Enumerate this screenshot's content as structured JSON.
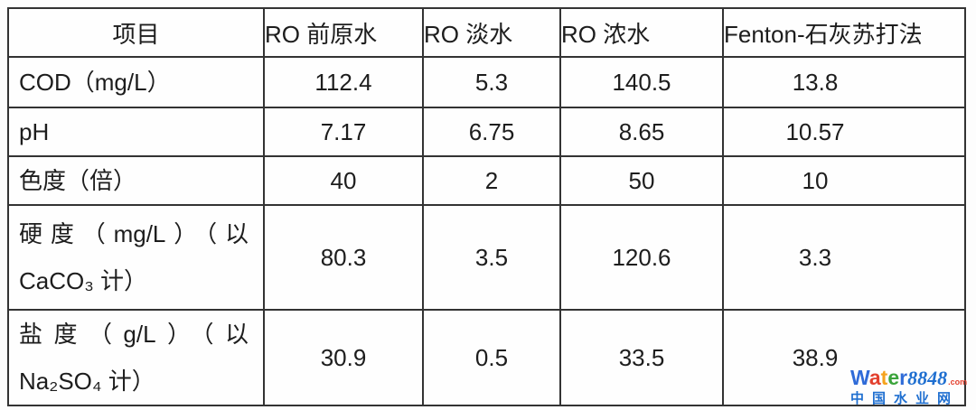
{
  "table": {
    "columns": [
      "项目",
      "RO 前原水",
      "RO 淡水",
      "RO 浓水",
      "Fenton-石灰苏打法"
    ],
    "rows": [
      {
        "label": "COD（mg/L）",
        "values": [
          "112.4",
          "5.3",
          "140.5",
          "13.8"
        ]
      },
      {
        "label": "pH",
        "values": [
          "7.17",
          "6.75",
          "8.65",
          "10.57"
        ]
      },
      {
        "label": "色度（倍）",
        "values": [
          "40",
          "2",
          "50",
          "10"
        ]
      },
      {
        "label": "硬度（mg/L）（以 CaCO₃ 计）",
        "values": [
          "80.3",
          "3.5",
          "120.6",
          "3.3"
        ]
      },
      {
        "label": "盐度（g/L）（以 Na₂SO₄ 计）",
        "values": [
          "30.9",
          "0.5",
          "33.5",
          "38.9"
        ]
      }
    ]
  },
  "watermark": {
    "brand_letters": [
      {
        "ch": "W",
        "color": "#2f6bd8"
      },
      {
        "ch": "a",
        "color": "#e3402e"
      },
      {
        "ch": "t",
        "color": "#f5a31d"
      },
      {
        "ch": "e",
        "color": "#3ba43b"
      },
      {
        "ch": "r",
        "color": "#2f6bd8"
      }
    ],
    "brand_number": "8848",
    "brand_tld": ".com",
    "subtitle": "中国水业网",
    "number_color": "#1f6fd0",
    "tld_color": "#e3402e",
    "subtitle_color": "#1f6fd0"
  }
}
